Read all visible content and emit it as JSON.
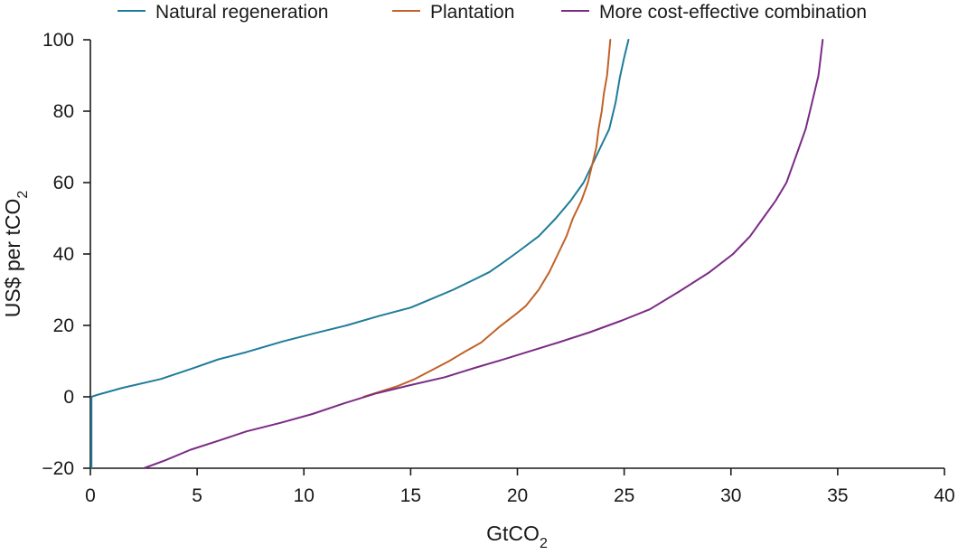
{
  "chart_data": {
    "type": "line",
    "title": "",
    "xlabel": "GtCO2",
    "xlabel_main": "GtCO",
    "xlabel_sub": "2",
    "ylabel": "US$ per tCO2",
    "ylabel_main": "US$ per tCO",
    "ylabel_sub": "2",
    "xlim": [
      0,
      40
    ],
    "ylim": [
      -20,
      100
    ],
    "xticks": [
      0,
      5,
      10,
      15,
      20,
      25,
      30,
      35,
      40
    ],
    "yticks": [
      -20,
      0,
      20,
      40,
      60,
      80,
      100
    ],
    "xtick_labels": [
      "0",
      "5",
      "10",
      "15",
      "20",
      "25",
      "30",
      "35",
      "40"
    ],
    "ytick_labels": [
      "−20",
      "0",
      "20",
      "40",
      "60",
      "80",
      "100"
    ],
    "grid": false,
    "legend_position": "top",
    "series": [
      {
        "name": "Natural regeneration",
        "color": "#1f7c9a",
        "x": [
          0.05,
          0.05,
          0.3,
          1.5,
          3.3,
          4.8,
          6.0,
          7.3,
          9.0,
          10.5,
          12.0,
          13.5,
          15.0,
          16.0,
          17.0,
          18.0,
          18.7,
          19.3,
          20.0,
          21.0,
          21.8,
          22.5,
          23.1,
          23.5,
          23.9,
          24.3,
          24.6,
          24.8,
          25.0,
          25.2
        ],
        "y": [
          -20,
          0,
          0.5,
          2.5,
          5,
          8,
          10.5,
          12.5,
          15.5,
          17.8,
          20,
          22.6,
          25,
          27.5,
          30,
          32.9,
          35,
          37.5,
          40.5,
          45,
          50,
          55,
          60,
          65,
          70,
          75,
          82.5,
          89.5,
          95,
          100
        ]
      },
      {
        "name": "Plantation",
        "color": "#c0622a",
        "x": [
          12.8,
          13.6,
          14.4,
          15.2,
          16.0,
          16.8,
          17.5,
          18.3,
          19.2,
          19.9,
          20.4,
          21.0,
          21.5,
          21.9,
          22.3,
          22.6,
          23.0,
          23.3,
          23.5,
          23.7,
          23.8,
          23.95,
          24.05,
          24.2,
          24.35
        ],
        "y": [
          0,
          1.5,
          3,
          5,
          7.5,
          10,
          12.5,
          15.2,
          19.8,
          23,
          25.5,
          30,
          35,
          40,
          45,
          50,
          55,
          60,
          65,
          70,
          75,
          80,
          85,
          90,
          100
        ]
      },
      {
        "name": "More cost-effective combination",
        "color": "#7b2b85",
        "x": [
          2.5,
          3.5,
          4.7,
          6.0,
          7.3,
          8.9,
          10.4,
          11.9,
          13.4,
          15.0,
          16.6,
          18.0,
          19.3,
          20.6,
          21.9,
          23.4,
          24.9,
          26.2,
          27.6,
          29.0,
          30.1,
          30.9,
          31.5,
          32.1,
          32.6,
          32.9,
          33.2,
          33.5,
          33.7,
          33.9,
          34.1,
          34.2,
          34.3
        ],
        "y": [
          -20,
          -17.8,
          -14.8,
          -12.3,
          -9.7,
          -7.3,
          -4.8,
          -1.8,
          1,
          3.3,
          5.5,
          8.1,
          10.4,
          12.8,
          15.2,
          18.1,
          21.4,
          24.5,
          29.6,
          34.9,
          40,
          45,
          50,
          55,
          60,
          65,
          70,
          75,
          80,
          85,
          90,
          95,
          100
        ]
      }
    ]
  }
}
